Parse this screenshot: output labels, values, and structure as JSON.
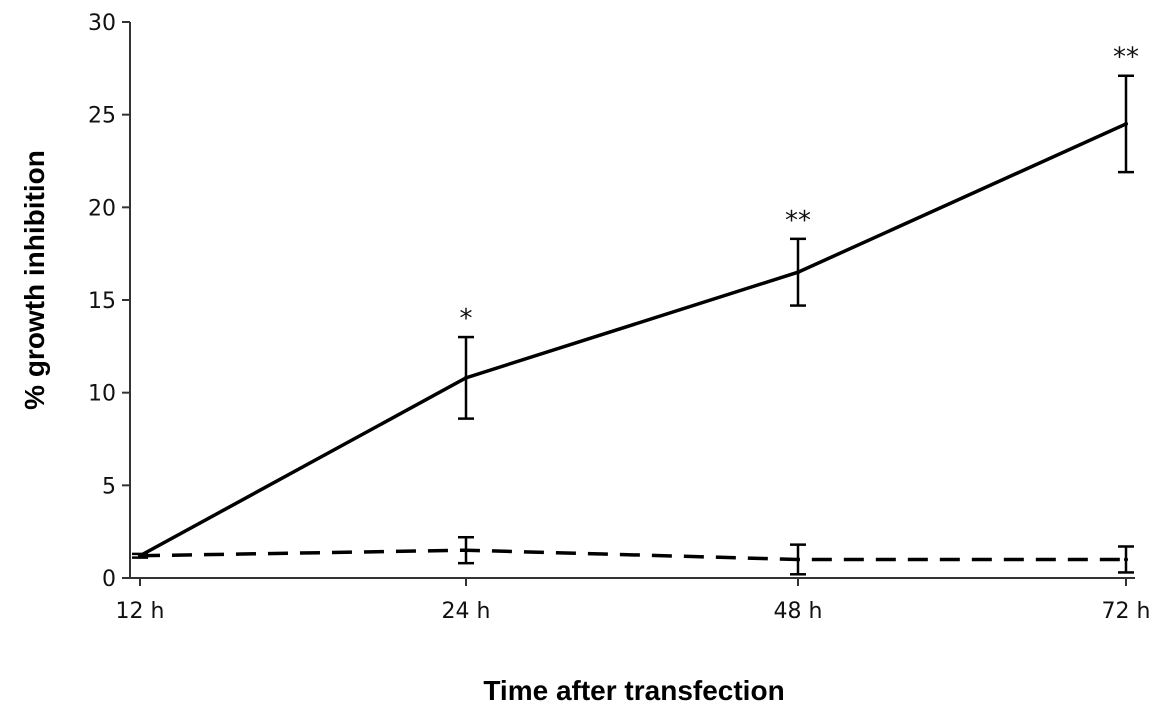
{
  "chart_data": {
    "type": "line",
    "categories": [
      "12 h",
      "24 h",
      "48 h",
      "72 h"
    ],
    "xlabel": "Time after transfection",
    "ylabel": "% growth inhibition",
    "ylim": [
      0,
      30
    ],
    "yticks": [
      0,
      5,
      10,
      15,
      20,
      25,
      30
    ],
    "grid": false,
    "legend": "none",
    "series": [
      {
        "style": "solid",
        "color": "#000000",
        "values": [
          1.2,
          10.8,
          16.5,
          24.5
        ],
        "errors": [
          0.0,
          2.2,
          1.8,
          2.6
        ],
        "significance": [
          "",
          "*",
          "**",
          "**"
        ]
      },
      {
        "style": "dashed",
        "color": "#000000",
        "values": [
          1.2,
          1.5,
          1.0,
          1.0
        ],
        "errors": [
          0.1,
          0.7,
          0.8,
          0.7
        ],
        "significance": [
          "",
          "",
          "",
          ""
        ]
      }
    ]
  }
}
